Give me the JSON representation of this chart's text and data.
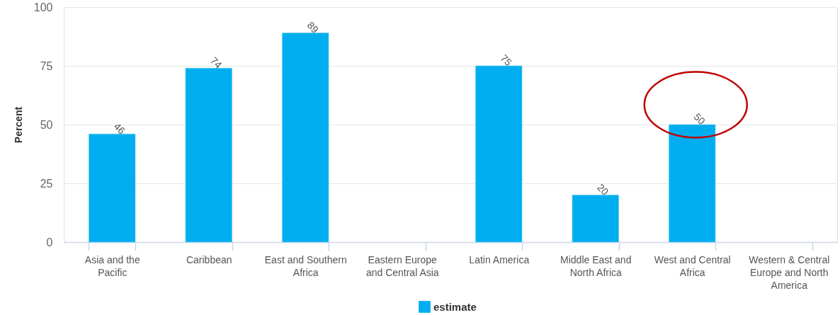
{
  "chart_data": {
    "type": "bar",
    "ylabel": "Percent",
    "categories": [
      "Asia and the Pacific",
      "Caribbean",
      "East and Southern Africa",
      "Eastern Europe and Central Asia",
      "Latin America",
      "Middle East and North Africa",
      "West and Central Africa",
      "Western & Central Europe and North America"
    ],
    "series": [
      {
        "name": "estimate",
        "color": "#00aeef",
        "values": [
          46,
          74,
          89,
          null,
          75,
          20,
          50,
          null
        ]
      }
    ],
    "ylim": [
      0,
      100
    ],
    "yticks": [
      0,
      25,
      50,
      75,
      100
    ],
    "grid": "y",
    "legend": "bottom",
    "data_labels": true
  }
}
